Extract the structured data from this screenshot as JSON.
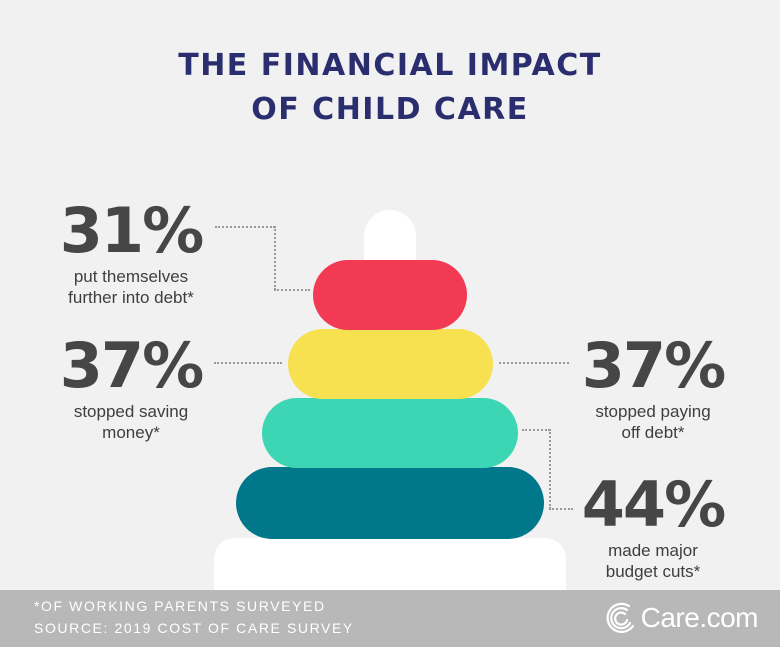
{
  "title": {
    "line1": "THE FINANCIAL IMPACT",
    "line2": "OF CHILD CARE"
  },
  "stats": [
    {
      "percent": "31%",
      "line1": "put themselves",
      "line2": "further into debt*",
      "color": "#f23a55"
    },
    {
      "percent": "37%",
      "line1": "stopped saving",
      "line2": "money*",
      "color": "#f7e150"
    },
    {
      "percent": "37%",
      "line1": "stopped paying",
      "line2": "off debt*",
      "color": "#3dd6b4"
    },
    {
      "percent": "44%",
      "line1": "made major",
      "line2": "budget cuts*",
      "color": "#00778a"
    }
  ],
  "footer": {
    "note1": "*OF WORKING PARENTS SURVEYED",
    "note2": "SOURCE: 2019 COST OF CARE SURVEY",
    "brand": "Care.com",
    "brand_icon": "care-logo-icon"
  },
  "colors": {
    "background": "#f1f1f1",
    "title": "#2b2e6e",
    "footer": "#b8b8b8",
    "peg": "#ffffff"
  }
}
